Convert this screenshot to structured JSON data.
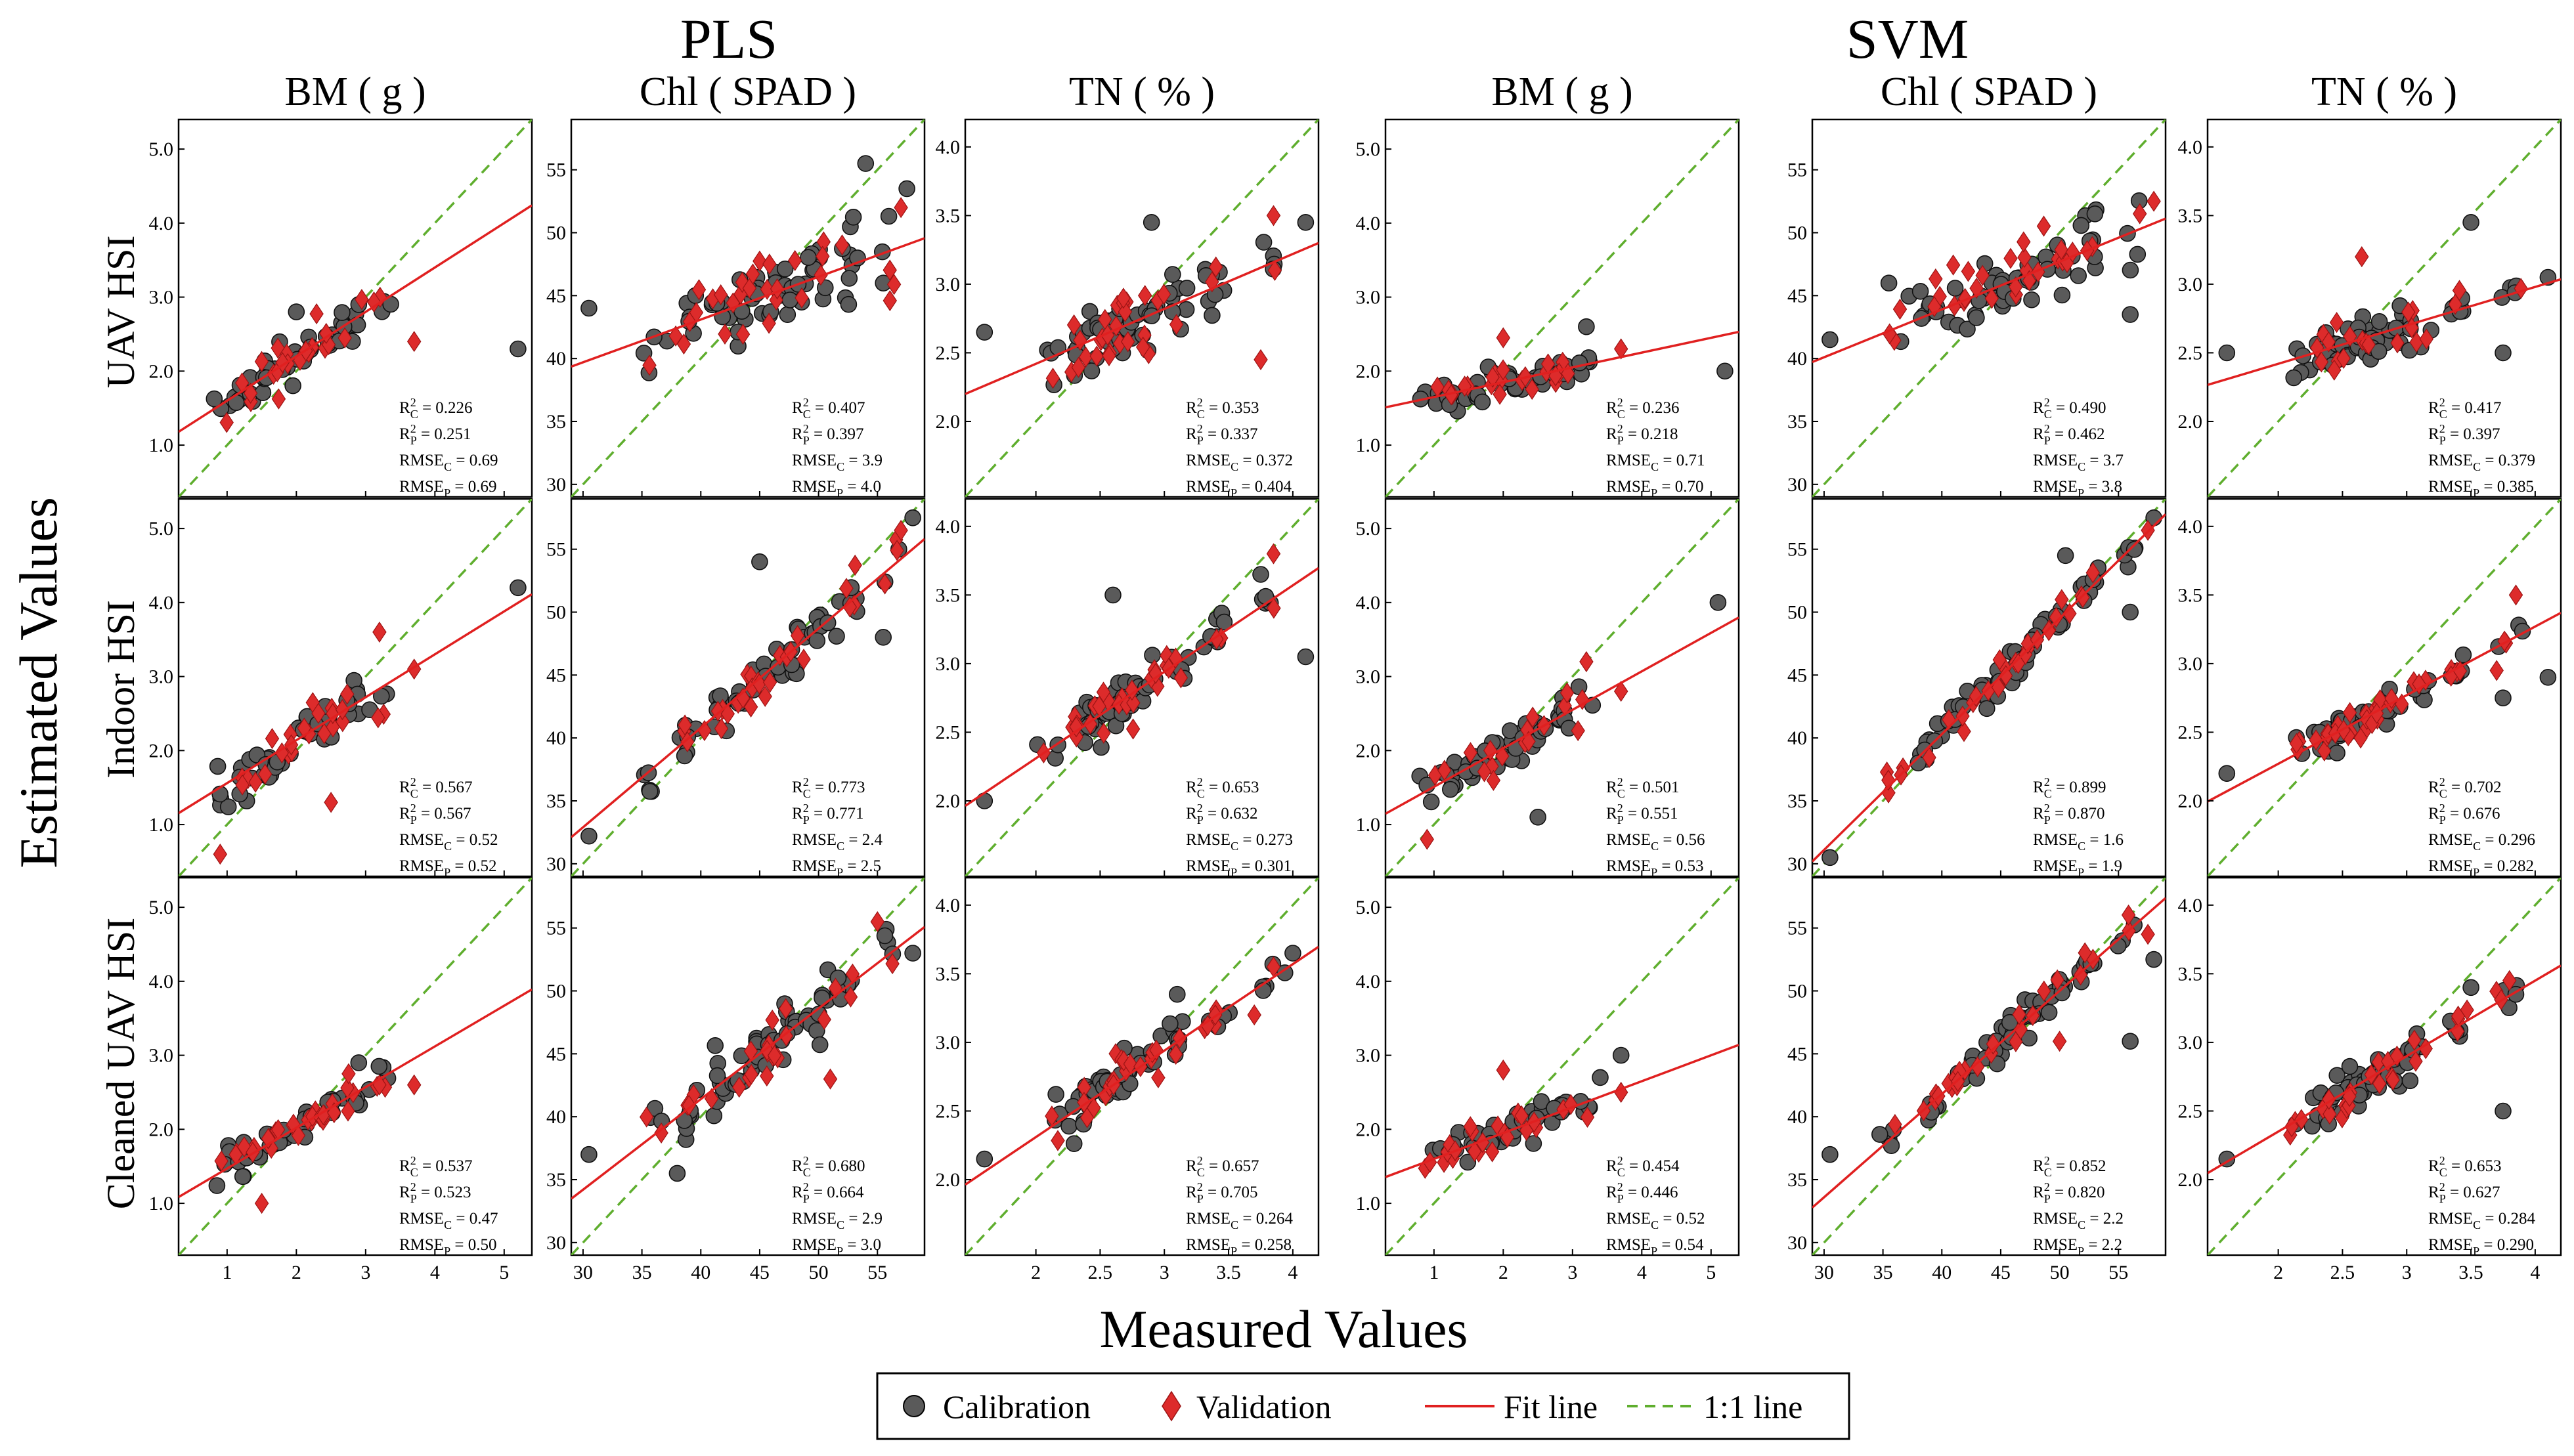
{
  "chart_data": {
    "type": "scatter",
    "title": "",
    "xlabel": "Measured Values",
    "ylabel": "Estimated Values",
    "models": [
      "PLS",
      "SVM"
    ],
    "rows": [
      "UAV HSI",
      "Indoor HSI",
      "Cleaned UAV HSI"
    ],
    "legend": {
      "position": "bottom",
      "items": [
        "Calibration",
        "Validation",
        "Fit line",
        "1:1 line"
      ]
    },
    "colors": {
      "calibration": "#5a5a5a",
      "validation": "#dd2b2b",
      "fit": "#e02020",
      "one_to_one": "#5fae2e"
    },
    "variables": {
      "BM": {
        "label": "BM ( g )",
        "range": [
          0.3,
          5.4
        ],
        "xticks": [
          1,
          2,
          3,
          4,
          5
        ],
        "xticklabels": [
          "1",
          "2",
          "3",
          "4",
          "5"
        ],
        "yticks": [
          1,
          2,
          3,
          4,
          5
        ],
        "yticklabels": [
          "1.0",
          "2.0",
          "3.0",
          "4.0",
          "5.0"
        ],
        "x_center": [
          0.95,
          1.25,
          1.55,
          1.85,
          2.15,
          2.45,
          2.8,
          3.2
        ]
      },
      "Chl": {
        "label": "Chl ( SPAD )",
        "range": [
          29,
          59
        ],
        "xticks": [
          30,
          35,
          40,
          45,
          50,
          55
        ],
        "xticklabels": [
          "30",
          "35",
          "40",
          "45",
          "50",
          "55"
        ],
        "yticks": [
          30,
          35,
          40,
          45,
          50,
          55
        ],
        "yticklabels": [
          "30",
          "35",
          "40",
          "45",
          "50",
          "55"
        ],
        "x_center": [
          36,
          39,
          41.5,
          43.5,
          45,
          46.5,
          48,
          50,
          52.5,
          56
        ]
      },
      "TN": {
        "label": "TN ( % )",
        "range": [
          1.45,
          4.2
        ],
        "xticks": [
          2,
          2.5,
          3,
          3.5,
          4
        ],
        "xticklabels": [
          "2",
          "2.5",
          "3",
          "3.5",
          "4"
        ],
        "yticks": [
          2,
          2.5,
          3,
          3.5,
          4
        ],
        "yticklabels": [
          "2.0",
          "2.5",
          "3.0",
          "3.5",
          "4.0"
        ],
        "x_center": [
          2.15,
          2.35,
          2.45,
          2.55,
          2.65,
          2.75,
          2.9,
          3.1,
          3.4,
          3.8
        ]
      }
    },
    "panels": [
      {
        "model": "PLS",
        "row": "UAV HSI",
        "var": "BM",
        "fit": [
          0.6,
          1.0
        ],
        "r2c": "0.226",
        "r2p": "0.251",
        "rmsec": "0.69",
        "rmsep": "0.69",
        "noise": 0.32,
        "outliers": [
          [
            5.2,
            2.3,
            "c"
          ],
          [
            3.7,
            2.4,
            "v"
          ],
          [
            2.0,
            2.8,
            "c"
          ],
          [
            2.9,
            2.9,
            "c"
          ]
        ]
      },
      {
        "model": "PLS",
        "row": "UAV HSI",
        "var": "Chl",
        "fit": [
          0.34,
          29.5
        ],
        "r2c": "0.407",
        "r2p": "0.397",
        "rmsec": "3.9",
        "rmsep": "4.0",
        "noise": 3.2,
        "outliers": [
          [
            30.5,
            44.0,
            "c"
          ],
          [
            54.0,
            55.5,
            "c"
          ],
          [
            57.5,
            53.5,
            "c"
          ],
          [
            57.0,
            52.0,
            "v"
          ],
          [
            55.5,
            46.0,
            "c"
          ]
        ]
      },
      {
        "model": "PLS",
        "row": "UAV HSI",
        "var": "TN",
        "fit": [
          0.4,
          1.62
        ],
        "r2c": "0.353",
        "r2p": "0.337",
        "rmsec": "0.372",
        "rmsep": "0.404",
        "noise": 0.26,
        "outliers": [
          [
            1.6,
            2.65,
            "c"
          ],
          [
            2.9,
            3.45,
            "c"
          ],
          [
            3.85,
            3.5,
            "v"
          ],
          [
            4.1,
            3.45,
            "c"
          ],
          [
            3.75,
            2.45,
            "v"
          ]
        ]
      },
      {
        "model": "PLS",
        "row": "Indoor HSI",
        "var": "BM",
        "fit": [
          0.58,
          0.98
        ],
        "r2c": "0.567",
        "r2p": "0.567",
        "rmsec": "0.52",
        "rmsep": "0.52",
        "noise": 0.34,
        "outliers": [
          [
            5.2,
            4.2,
            "c"
          ],
          [
            3.2,
            3.6,
            "v"
          ],
          [
            3.7,
            3.1,
            "v"
          ],
          [
            2.5,
            1.3,
            "v"
          ],
          [
            0.9,
            0.6,
            "v"
          ]
        ]
      },
      {
        "model": "PLS",
        "row": "Indoor HSI",
        "var": "Chl",
        "fit": [
          0.79,
          9.2
        ],
        "r2c": "0.773",
        "r2p": "0.771",
        "rmsec": "2.4",
        "rmsep": "2.5",
        "noise": 2.0,
        "outliers": [
          [
            30.5,
            32.2,
            "c"
          ],
          [
            58.0,
            57.5,
            "c"
          ],
          [
            57.0,
            56.5,
            "v"
          ],
          [
            45.0,
            54.0,
            "c"
          ],
          [
            55.5,
            48.0,
            "c"
          ]
        ]
      },
      {
        "model": "PLS",
        "row": "Indoor HSI",
        "var": "TN",
        "fit": [
          0.63,
          1.05
        ],
        "r2c": "0.653",
        "r2p": "0.632",
        "rmsec": "0.273",
        "rmsep": "0.301",
        "noise": 0.17,
        "outliers": [
          [
            1.6,
            2.0,
            "c"
          ],
          [
            4.1,
            3.05,
            "c"
          ],
          [
            3.85,
            3.8,
            "v"
          ],
          [
            2.6,
            3.5,
            "c"
          ],
          [
            3.75,
            3.65,
            "c"
          ]
        ]
      },
      {
        "model": "PLS",
        "row": "Cleaned UAV HSI",
        "var": "BM",
        "fit": [
          0.55,
          0.92
        ],
        "r2c": "0.537",
        "r2p": "0.523",
        "rmsec": "0.47",
        "rmsep": "0.50",
        "noise": 0.26,
        "outliers": [
          [
            3.2,
            2.6,
            "v"
          ],
          [
            2.9,
            2.9,
            "c"
          ],
          [
            3.7,
            2.6,
            "v"
          ],
          [
            1.5,
            1.0,
            "v"
          ]
        ]
      },
      {
        "model": "PLS",
        "row": "Cleaned UAV HSI",
        "var": "Chl",
        "fit": [
          0.72,
          12.6
        ],
        "r2c": "0.680",
        "r2p": "0.664",
        "rmsec": "2.9",
        "rmsep": "3.0",
        "noise": 2.4,
        "outliers": [
          [
            30.5,
            37.0,
            "c"
          ],
          [
            55.0,
            55.5,
            "v"
          ],
          [
            58.0,
            53.0,
            "c"
          ],
          [
            51.0,
            43.0,
            "v"
          ],
          [
            38.0,
            35.5,
            "c"
          ]
        ]
      },
      {
        "model": "PLS",
        "row": "Cleaned UAV HSI",
        "var": "TN",
        "fit": [
          0.63,
          1.05
        ],
        "r2c": "0.657",
        "r2p": "0.705",
        "rmsec": "0.264",
        "rmsep": "0.258",
        "noise": 0.16,
        "outliers": [
          [
            1.6,
            2.15,
            "c"
          ],
          [
            4.0,
            3.65,
            "c"
          ],
          [
            3.85,
            3.55,
            "v"
          ],
          [
            3.7,
            3.2,
            "v"
          ],
          [
            3.1,
            3.35,
            "c"
          ]
        ]
      },
      {
        "model": "SVM",
        "row": "UAV HSI",
        "var": "BM",
        "fit": [
          0.2,
          1.45
        ],
        "r2c": "0.236",
        "r2p": "0.218",
        "rmsec": "0.71",
        "rmsep": "0.70",
        "noise": 0.22,
        "outliers": [
          [
            5.2,
            2.0,
            "c"
          ],
          [
            3.7,
            2.3,
            "v"
          ],
          [
            3.2,
            2.6,
            "c"
          ],
          [
            2.0,
            2.45,
            "v"
          ]
        ]
      },
      {
        "model": "SVM",
        "row": "UAV HSI",
        "var": "Chl",
        "fit": [
          0.38,
          28.7
        ],
        "r2c": "0.490",
        "r2p": "0.462",
        "rmsec": "3.7",
        "rmsep": "3.8",
        "noise": 2.8,
        "outliers": [
          [
            30.5,
            41.5,
            "c"
          ],
          [
            58.0,
            52.5,
            "v"
          ],
          [
            56.0,
            43.5,
            "c"
          ],
          [
            53.0,
            51.5,
            "c"
          ],
          [
            35.5,
            46.0,
            "c"
          ]
        ]
      },
      {
        "model": "SVM",
        "row": "UAV HSI",
        "var": "TN",
        "fit": [
          0.28,
          1.86
        ],
        "r2c": "0.417",
        "r2p": "0.397",
        "rmsec": "0.379",
        "rmsep": "0.385",
        "noise": 0.18,
        "outliers": [
          [
            1.6,
            2.5,
            "c"
          ],
          [
            3.5,
            3.45,
            "c"
          ],
          [
            2.65,
            3.2,
            "v"
          ],
          [
            4.1,
            3.05,
            "c"
          ],
          [
            3.75,
            2.5,
            "c"
          ]
        ]
      },
      {
        "model": "SVM",
        "row": "Indoor HSI",
        "var": "BM",
        "fit": [
          0.52,
          0.99
        ],
        "r2c": "0.501",
        "r2p": "0.551",
        "rmsec": "0.56",
        "rmsep": "0.53",
        "noise": 0.3,
        "outliers": [
          [
            5.1,
            4.0,
            "c"
          ],
          [
            3.2,
            3.2,
            "v"
          ],
          [
            3.7,
            2.8,
            "v"
          ],
          [
            2.5,
            1.1,
            "c"
          ],
          [
            0.9,
            0.8,
            "v"
          ]
        ]
      },
      {
        "model": "SVM",
        "row": "Indoor HSI",
        "var": "Chl",
        "fit": [
          0.92,
          3.5
        ],
        "r2c": "0.899",
        "r2p": "0.870",
        "rmsec": "1.6",
        "rmsep": "1.9",
        "noise": 1.4,
        "outliers": [
          [
            30.5,
            30.5,
            "c"
          ],
          [
            57.5,
            56.5,
            "v"
          ],
          [
            58.0,
            57.5,
            "c"
          ],
          [
            56.0,
            50.0,
            "c"
          ],
          [
            50.5,
            54.5,
            "c"
          ]
        ]
      },
      {
        "model": "SVM",
        "row": "Indoor HSI",
        "var": "TN",
        "fit": [
          0.5,
          1.27
        ],
        "r2c": "0.702",
        "r2p": "0.676",
        "rmsec": "0.296",
        "rmsep": "0.282",
        "noise": 0.12,
        "outliers": [
          [
            1.6,
            2.2,
            "c"
          ],
          [
            4.1,
            2.9,
            "c"
          ],
          [
            3.85,
            3.5,
            "v"
          ],
          [
            3.75,
            2.75,
            "c"
          ],
          [
            3.7,
            2.95,
            "v"
          ]
        ]
      },
      {
        "model": "SVM",
        "row": "Cleaned UAV HSI",
        "var": "BM",
        "fit": [
          0.35,
          1.25
        ],
        "r2c": "0.454",
        "r2p": "0.446",
        "rmsec": "0.52",
        "rmsep": "0.54",
        "noise": 0.22,
        "outliers": [
          [
            3.7,
            3.0,
            "c"
          ],
          [
            2.0,
            2.8,
            "v"
          ],
          [
            3.7,
            2.5,
            "v"
          ],
          [
            3.4,
            2.7,
            "c"
          ]
        ]
      },
      {
        "model": "SVM",
        "row": "Cleaned UAV HSI",
        "var": "Chl",
        "fit": [
          0.82,
          9.0
        ],
        "r2c": "0.852",
        "r2p": "0.820",
        "rmsec": "2.2",
        "rmsep": "2.2",
        "noise": 1.3,
        "outliers": [
          [
            30.5,
            37.0,
            "c"
          ],
          [
            57.5,
            54.5,
            "v"
          ],
          [
            58.0,
            52.5,
            "c"
          ],
          [
            56.0,
            46.0,
            "c"
          ],
          [
            50.0,
            46.0,
            "v"
          ]
        ]
      },
      {
        "model": "SVM",
        "row": "Cleaned UAV HSI",
        "var": "TN",
        "fit": [
          0.55,
          1.25
        ],
        "r2c": "0.653",
        "r2p": "0.627",
        "rmsec": "0.284",
        "rmsep": "0.290",
        "noise": 0.15,
        "outliers": [
          [
            1.6,
            2.15,
            "c"
          ],
          [
            3.85,
            3.35,
            "c"
          ],
          [
            3.8,
            3.45,
            "v"
          ],
          [
            3.75,
            2.5,
            "c"
          ],
          [
            3.5,
            3.4,
            "c"
          ]
        ]
      }
    ]
  }
}
